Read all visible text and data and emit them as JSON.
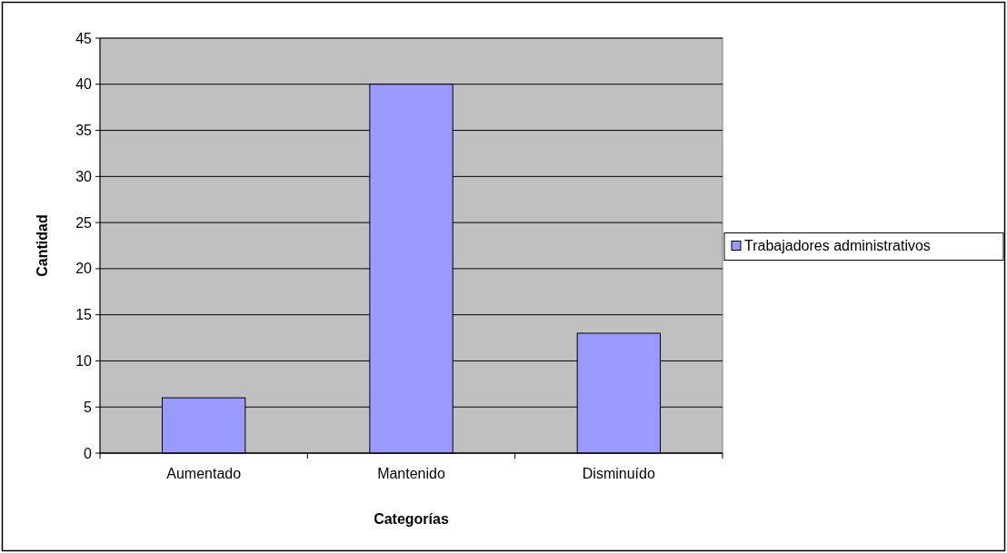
{
  "chart_data": {
    "type": "bar",
    "xlabel": "Categorías",
    "ylabel": "Cantidad",
    "categories": [
      "Aumentado",
      "Mantenido",
      "Disminuído"
    ],
    "series": [
      {
        "name": "Trabajadores administrativos",
        "color": "#9999ff",
        "values": [
          6,
          40,
          13
        ]
      }
    ],
    "ylim": [
      0,
      45
    ],
    "yticks": [
      0,
      5,
      10,
      15,
      20,
      25,
      30,
      35,
      40,
      45
    ],
    "grid": "y",
    "legend": "right"
  }
}
